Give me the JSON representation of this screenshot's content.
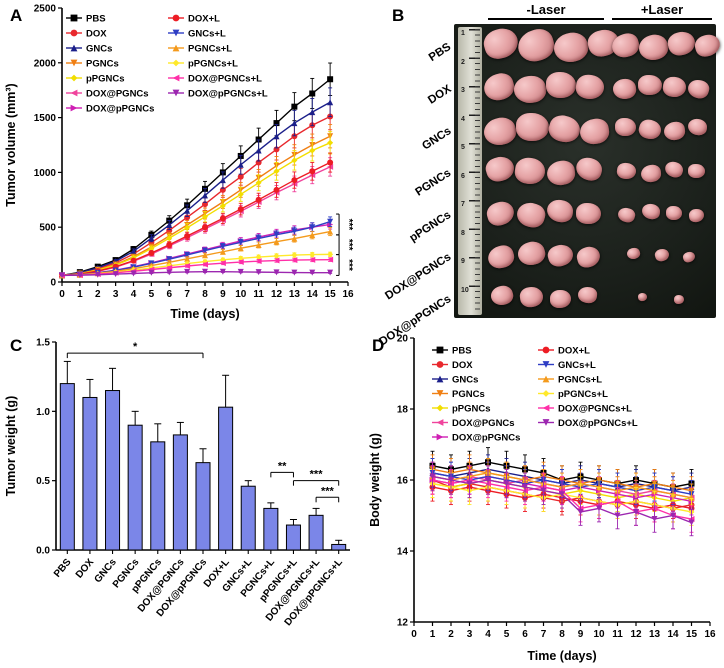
{
  "panels": {
    "a": "A",
    "b": "B",
    "c": "C",
    "d": "D"
  },
  "panel_b": {
    "label": "B",
    "column_headers": [
      "-Laser",
      "+Laser"
    ],
    "row_labels": [
      "PBS",
      "DOX",
      "GNCs",
      "PGNCs",
      "pPGNCs",
      "DOX@PGNCs",
      "DOX@pPGNCs"
    ],
    "ruler_numbers": [
      "1",
      "2",
      "3",
      "4",
      "5",
      "6",
      "7",
      "8",
      "9",
      "10"
    ],
    "rows": [
      {
        "label": "PBS",
        "minus": [
          34,
          36,
          34,
          31
        ],
        "plus": [
          27,
          29,
          27,
          25
        ]
      },
      {
        "label": "DOX",
        "minus": [
          30,
          32,
          30,
          28
        ],
        "plus": [
          23,
          24,
          23,
          21
        ]
      },
      {
        "label": "GNCs",
        "minus": [
          32,
          33,
          31,
          29
        ],
        "plus": [
          21,
          22,
          21,
          19
        ]
      },
      {
        "label": "PGNCs",
        "minus": [
          28,
          30,
          28,
          26
        ],
        "plus": [
          19,
          20,
          18,
          17
        ]
      },
      {
        "label": "pPGNCs",
        "minus": [
          27,
          28,
          26,
          25
        ],
        "plus": [
          17,
          18,
          16,
          15
        ]
      },
      {
        "label": "DOX@PGNCs",
        "minus": [
          26,
          27,
          25,
          23
        ],
        "plus": [
          13,
          14,
          12,
          0
        ]
      },
      {
        "label": "DOX@pPGNCs",
        "minus": [
          22,
          23,
          21,
          19
        ],
        "plus": [
          9,
          10,
          0,
          0
        ]
      }
    ]
  },
  "chart_data": [
    {
      "id": "tumor-volume",
      "type": "line",
      "xlabel": "Time (days)",
      "ylabel": "Tumor volume (mm³)",
      "xlim": [
        0,
        16
      ],
      "ylim": [
        0,
        2500
      ],
      "xticks": [
        0,
        1,
        2,
        3,
        4,
        5,
        6,
        7,
        8,
        9,
        10,
        11,
        12,
        13,
        14,
        15,
        16
      ],
      "yticks": [
        0,
        500,
        1000,
        1500,
        2000,
        2500
      ],
      "x": [
        0,
        1,
        2,
        3,
        4,
        5,
        6,
        7,
        8,
        9,
        10,
        11,
        12,
        13,
        14,
        15
      ],
      "err_pct": 8,
      "legend_columns": [
        [
          0,
          1,
          2,
          3,
          4,
          5,
          6
        ],
        [
          7,
          8,
          9,
          10,
          11,
          12
        ]
      ],
      "series": [
        {
          "name": "PBS",
          "color": "#000000",
          "marker": "square",
          "values": [
            60,
            90,
            140,
            200,
            300,
            430,
            560,
            700,
            850,
            1000,
            1150,
            1300,
            1450,
            1600,
            1720,
            1850
          ]
        },
        {
          "name": "DOX",
          "color": "#e8282d",
          "marker": "circle",
          "values": [
            60,
            80,
            120,
            175,
            255,
            360,
            470,
            590,
            710,
            840,
            960,
            1090,
            1210,
            1330,
            1430,
            1510
          ]
        },
        {
          "name": "GNCs",
          "color": "#1b1f8a",
          "marker": "triangle-up",
          "values": [
            60,
            85,
            130,
            190,
            280,
            400,
            520,
            650,
            790,
            930,
            1070,
            1200,
            1330,
            1450,
            1550,
            1640
          ]
        },
        {
          "name": "PGNCs",
          "color": "#f07f13",
          "marker": "triangle-down",
          "values": [
            60,
            78,
            112,
            160,
            230,
            320,
            420,
            520,
            625,
            730,
            840,
            950,
            1060,
            1160,
            1250,
            1330
          ]
        },
        {
          "name": "pPGNCs",
          "color": "#f2de00",
          "marker": "diamond",
          "values": [
            60,
            76,
            108,
            155,
            220,
            305,
            400,
            495,
            595,
            695,
            800,
            905,
            1010,
            1110,
            1200,
            1270
          ]
        },
        {
          "name": "DOX@PGNCs",
          "color": "#f0439c",
          "marker": "triangle-left",
          "values": [
            60,
            72,
            98,
            135,
            190,
            255,
            330,
            405,
            485,
            565,
            645,
            730,
            815,
            895,
            975,
            1050
          ]
        },
        {
          "name": "DOX@pPGNCs",
          "color": "#cf1fb4",
          "marker": "triangle-right",
          "values": [
            60,
            68,
            85,
            108,
            140,
            175,
            215,
            255,
            295,
            335,
            375,
            410,
            445,
            475,
            500,
            525
          ]
        },
        {
          "name": "DOX+L",
          "color": "#ed1c24",
          "marker": "circle",
          "values": [
            60,
            72,
            100,
            140,
            195,
            265,
            340,
            420,
            500,
            580,
            665,
            750,
            840,
            930,
            1010,
            1090
          ]
        },
        {
          "name": "GNCs+L",
          "color": "#2f3ec4",
          "marker": "triangle-down",
          "values": [
            60,
            68,
            84,
            105,
            135,
            170,
            208,
            247,
            287,
            325,
            362,
            398,
            432,
            463,
            500,
            550
          ]
        },
        {
          "name": "PGNCs+L",
          "color": "#f49a1c",
          "marker": "triangle-up",
          "values": [
            60,
            66,
            80,
            98,
            122,
            150,
            180,
            212,
            244,
            276,
            308,
            338,
            368,
            396,
            428,
            460
          ]
        },
        {
          "name": "pPGNCs+L",
          "color": "#ffe92b",
          "marker": "diamond",
          "values": [
            60,
            64,
            75,
            90,
            108,
            128,
            148,
            168,
            186,
            202,
            216,
            228,
            238,
            246,
            250,
            252
          ]
        },
        {
          "name": "DOX@PGNCs+L",
          "color": "#ff2fa8",
          "marker": "triangle-left",
          "values": [
            60,
            63,
            72,
            84,
            98,
            114,
            130,
            146,
            160,
            172,
            182,
            190,
            196,
            200,
            202,
            204
          ]
        },
        {
          "name": "DOX@pPGNCs+L",
          "color": "#9c27b0",
          "marker": "triangle-down",
          "values": [
            60,
            62,
            66,
            72,
            78,
            84,
            88,
            92,
            94,
            94,
            92,
            90,
            88,
            86,
            85,
            85
          ]
        }
      ],
      "annotations": [
        {
          "label": "***",
          "x": 15.5,
          "y1": 430,
          "y2": 620
        },
        {
          "label": "***",
          "x": 15.5,
          "y1": 250,
          "y2": 430
        },
        {
          "label": "***",
          "x": 15.5,
          "y1": 60,
          "y2": 250
        }
      ]
    },
    {
      "id": "tumor-weight",
      "type": "bar",
      "ylabel": "Tumor weight (g)",
      "ylim": [
        0,
        1.5
      ],
      "yticks": [
        "0.0",
        "0.5",
        "1.0",
        "1.5"
      ],
      "bar_color": "#7b86e8",
      "bar_border": "#000000",
      "categories": [
        "PBS",
        "DOX",
        "GNCs",
        "PGNCs",
        "pPGNCs",
        "DOX@PGNCs",
        "DOX@pPGNCs",
        "DOX+L",
        "GNCs+L",
        "PGNCs+L",
        "pPGNCs+L",
        "DOX@PGNCs+L",
        "DOX@pPGNCs+L"
      ],
      "values": [
        1.2,
        1.1,
        1.15,
        0.9,
        0.78,
        0.83,
        0.63,
        1.03,
        0.46,
        0.3,
        0.18,
        0.25,
        0.04
      ],
      "errors": [
        0.16,
        0.13,
        0.16,
        0.1,
        0.13,
        0.09,
        0.1,
        0.23,
        0.04,
        0.04,
        0.04,
        0.05,
        0.03
      ],
      "annotations": [
        {
          "label": "*",
          "x1": 0,
          "x2": 6,
          "y": 1.42
        },
        {
          "label": "**",
          "x1": 9,
          "x2": 10,
          "y": 0.56
        },
        {
          "label": "***",
          "x1": 10,
          "x2": 12,
          "y": 0.5
        },
        {
          "label": "***",
          "x1": 11,
          "x2": 12,
          "y": 0.38
        }
      ]
    },
    {
      "id": "body-weight",
      "type": "line",
      "xlabel": "Time (days)",
      "ylabel": "Body weight (g)",
      "xlim": [
        0,
        16
      ],
      "ylim": [
        12,
        20
      ],
      "xticks": [
        0,
        1,
        2,
        3,
        4,
        5,
        6,
        7,
        8,
        9,
        10,
        11,
        12,
        13,
        14,
        15,
        16
      ],
      "yticks": [
        12,
        14,
        16,
        18,
        20
      ],
      "x": [
        1,
        2,
        3,
        4,
        5,
        6,
        7,
        8,
        9,
        10,
        11,
        12,
        13,
        14,
        15
      ],
      "err_pct": 2.5,
      "legend_columns": [
        [
          0,
          1,
          2,
          3,
          4,
          5,
          6
        ],
        [
          7,
          8,
          9,
          10,
          11,
          12
        ]
      ],
      "series": [
        {
          "name": "PBS",
          "color": "#000000",
          "marker": "square",
          "values": [
            16.4,
            16.3,
            16.4,
            16.5,
            16.4,
            16.3,
            16.2,
            16.0,
            16.1,
            16.0,
            15.9,
            16.0,
            15.9,
            15.8,
            15.9
          ]
        },
        {
          "name": "DOX",
          "color": "#e8282d",
          "marker": "circle",
          "values": [
            16.0,
            15.8,
            15.9,
            15.8,
            15.7,
            15.6,
            15.5,
            15.4,
            15.5,
            15.4,
            15.3,
            15.4,
            15.3,
            15.2,
            15.3
          ]
        },
        {
          "name": "GNCs",
          "color": "#1b1f8a",
          "marker": "triangle-up",
          "values": [
            16.2,
            16.1,
            16.2,
            16.3,
            16.2,
            16.1,
            16.0,
            15.9,
            16.0,
            15.9,
            15.8,
            15.9,
            15.8,
            15.7,
            15.8
          ]
        },
        {
          "name": "PGNCs",
          "color": "#f07f13",
          "marker": "triangle-down",
          "values": [
            16.3,
            16.2,
            16.3,
            16.2,
            16.1,
            16.0,
            16.1,
            16.0,
            15.9,
            16.0,
            15.9,
            15.8,
            15.9,
            15.8,
            15.7
          ]
        },
        {
          "name": "pPGNCs",
          "color": "#f2de00",
          "marker": "diamond",
          "values": [
            15.9,
            15.8,
            15.9,
            16.0,
            15.9,
            15.8,
            15.7,
            15.6,
            15.7,
            15.6,
            15.5,
            15.6,
            15.5,
            15.4,
            15.5
          ]
        },
        {
          "name": "DOX@PGNCs",
          "color": "#f0439c",
          "marker": "triangle-left",
          "values": [
            16.1,
            16.0,
            16.1,
            16.0,
            15.9,
            16.0,
            15.9,
            15.8,
            15.9,
            15.8,
            15.7,
            15.6,
            15.7,
            15.6,
            15.5
          ]
        },
        {
          "name": "DOX@pPGNCs",
          "color": "#cf1fb4",
          "marker": "triangle-right",
          "values": [
            16.0,
            15.9,
            16.0,
            16.1,
            16.0,
            15.9,
            15.8,
            15.7,
            15.8,
            15.7,
            15.6,
            15.5,
            15.6,
            15.5,
            15.4
          ]
        },
        {
          "name": "DOX+L",
          "color": "#ed1c24",
          "marker": "circle",
          "values": [
            15.8,
            15.7,
            15.8,
            15.7,
            15.6,
            15.5,
            15.6,
            15.5,
            15.4,
            15.3,
            15.4,
            15.3,
            15.2,
            15.3,
            15.2
          ]
        },
        {
          "name": "GNCs+L",
          "color": "#2f3ec4",
          "marker": "triangle-down",
          "values": [
            16.2,
            16.1,
            16.0,
            16.1,
            16.0,
            15.9,
            16.0,
            15.9,
            15.8,
            15.9,
            15.8,
            15.7,
            15.8,
            15.7,
            15.6
          ]
        },
        {
          "name": "PGNCs+L",
          "color": "#f49a1c",
          "marker": "triangle-up",
          "values": [
            16.1,
            16.0,
            16.1,
            16.2,
            16.1,
            16.0,
            15.9,
            15.8,
            15.9,
            15.8,
            15.7,
            15.8,
            15.7,
            15.6,
            15.5
          ]
        },
        {
          "name": "pPGNCs+L",
          "color": "#ffe92b",
          "marker": "diamond",
          "values": [
            15.9,
            15.8,
            15.7,
            15.8,
            15.7,
            15.6,
            15.5,
            15.6,
            15.5,
            15.4,
            15.3,
            15.4,
            15.3,
            15.2,
            15.1
          ]
        },
        {
          "name": "DOX@PGNCs+L",
          "color": "#ff2fa8",
          "marker": "triangle-left",
          "values": [
            16.0,
            15.9,
            16.0,
            15.9,
            15.8,
            15.7,
            15.8,
            15.7,
            15.2,
            15.3,
            15.4,
            15.1,
            15.2,
            15.0,
            14.9
          ]
        },
        {
          "name": "DOX@pPGNCs+L",
          "color": "#9c27b0",
          "marker": "triangle-down",
          "values": [
            16.1,
            16.0,
            15.9,
            16.0,
            15.9,
            15.8,
            15.7,
            15.6,
            15.1,
            15.2,
            15.0,
            15.1,
            14.9,
            15.0,
            14.8
          ]
        }
      ]
    }
  ]
}
